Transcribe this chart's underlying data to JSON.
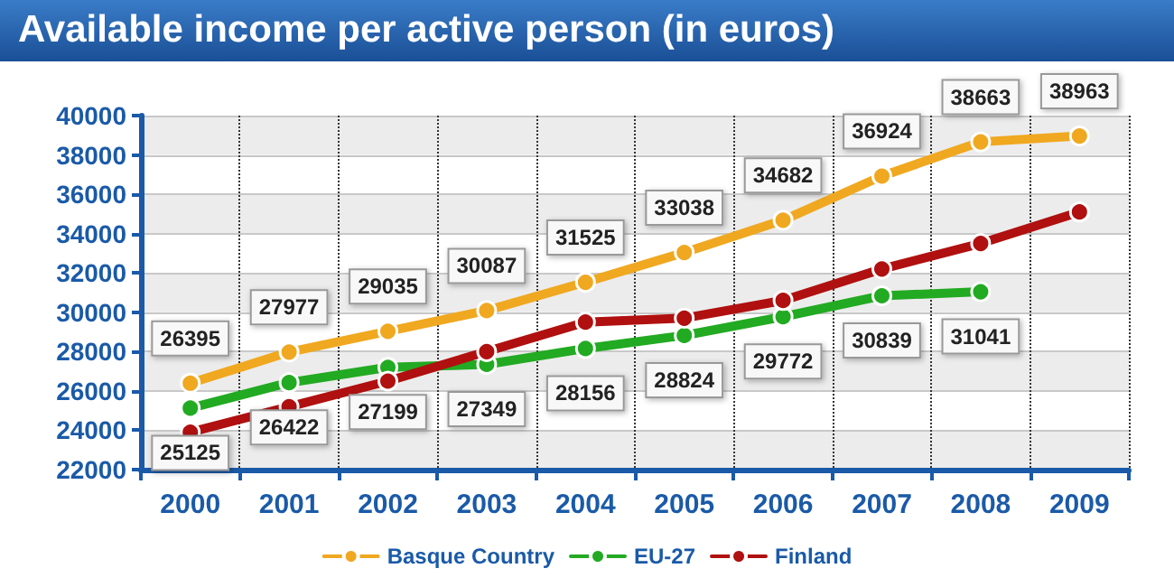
{
  "chart_data": {
    "type": "line",
    "title": "Available income per active person (in euros)",
    "categories": [
      "2000",
      "2001",
      "2002",
      "2003",
      "2004",
      "2005",
      "2006",
      "2007",
      "2008",
      "2009"
    ],
    "series": [
      {
        "name": "Basque Country",
        "color": "#f0a820",
        "values": [
          26395,
          27977,
          29035,
          30087,
          31525,
          33038,
          34682,
          36924,
          38663,
          38963
        ],
        "value_labels": [
          "26395",
          "27977",
          "29035",
          "30087",
          "31525",
          "33038",
          "34682",
          "36924",
          "38663",
          "38963"
        ]
      },
      {
        "name": "EU-27",
        "color": "#22aa22",
        "values": [
          25125,
          26422,
          27199,
          27349,
          28156,
          28824,
          29772,
          30839,
          31041,
          null
        ],
        "value_labels": [
          "25125",
          "26422",
          "27199",
          "27349",
          "28156",
          "28824",
          "29772",
          "30839",
          "31041",
          null
        ]
      },
      {
        "name": "Finland",
        "color": "#b01010",
        "values": [
          23900,
          25200,
          26500,
          28000,
          29500,
          29700,
          30600,
          32200,
          33500,
          35100
        ]
      }
    ],
    "ylim": [
      22000,
      40000
    ],
    "yticks": [
      22000,
      24000,
      26000,
      28000,
      30000,
      32000,
      34000,
      36000,
      38000,
      40000
    ],
    "grid": true,
    "legend": "bottom",
    "marker": "circle",
    "line_style": "solid"
  }
}
